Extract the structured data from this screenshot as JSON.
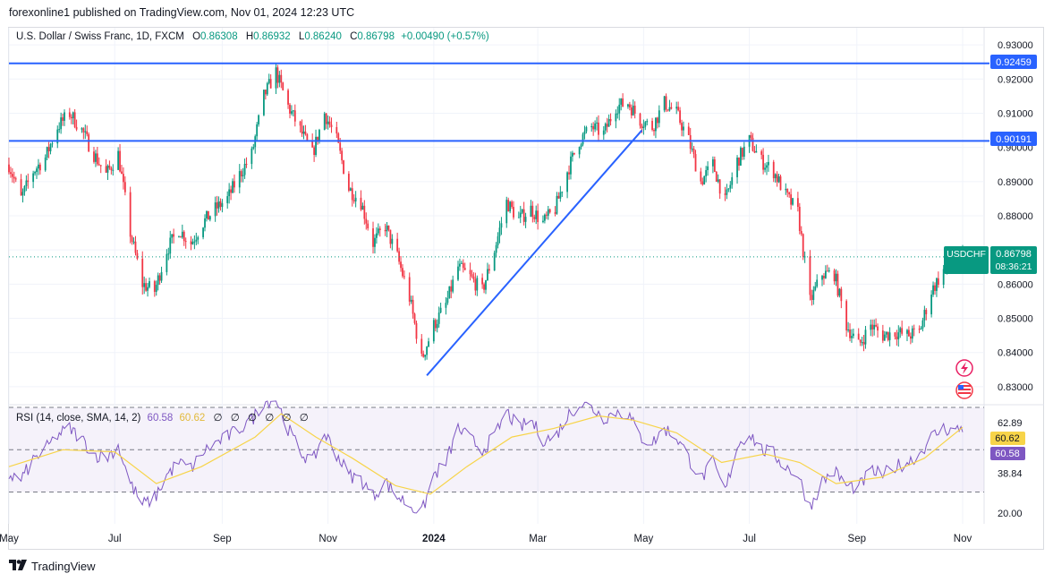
{
  "header": {
    "published": "forexonline1 published on TradingView.com, Nov 01, 2024 12:23 UTC"
  },
  "legend": {
    "symbol": "U.S. Dollar / Swiss Franc, 1D, FXCM",
    "open_label": "O",
    "open": "0.86308",
    "high_label": "H",
    "high": "0.86932",
    "low_label": "L",
    "low": "0.86240",
    "close_label": "C",
    "close": "0.86798",
    "change": "+0.00490 (+0.57%)"
  },
  "rsi_legend": {
    "name": "RSI (14, close, SMA, 14, 2)",
    "rsi_value": "60.58",
    "sma_value": "60.62",
    "na_values": [
      "∅",
      "∅",
      "∅",
      "∅",
      "∅",
      "∅"
    ]
  },
  "price_badges": {
    "symbol": "USDCHF",
    "last": "0.86798",
    "countdown": "08:36:21",
    "line_upper": "0.92459",
    "line_lower": "0.90191"
  },
  "rsi_badges": {
    "sma": "60.62",
    "rsi": "60.58"
  },
  "colors": {
    "up": "#089981",
    "down": "#f23645",
    "trendline": "#2962ff",
    "rsi_line": "#7e57c2",
    "rsi_sma": "#f7d449",
    "rsi_band": "#7e57c2"
  },
  "footer": {
    "brand": "TradingView"
  },
  "chart_data": [
    {
      "type": "candlestick",
      "title": "U.S. Dollar / Swiss Franc, 1D, FXCM",
      "ylim": [
        0.825,
        0.935
      ],
      "y_ticks": [
        "0.93000",
        "0.92000",
        "0.91000",
        "0.90000",
        "0.89000",
        "0.88000",
        "0.87000",
        "0.86000",
        "0.85000",
        "0.84000",
        "0.83000"
      ],
      "x_ticks": [
        "May",
        "Jul",
        "Sep",
        "Nov",
        "2024",
        "Mar",
        "May",
        "Jul",
        "Sep",
        "Nov"
      ],
      "horizontal_lines": [
        0.92459,
        0.90191
      ],
      "trendline": [
        {
          "x": "2023-12-28",
          "y": 0.8333
        },
        {
          "x": "2024-04-30",
          "y": 0.905
        }
      ],
      "last_price": 0.86798,
      "path": [
        [
          "2023-05-01",
          0.895
        ],
        [
          "2023-05-08",
          0.885
        ],
        [
          "2023-05-15",
          0.893
        ],
        [
          "2023-05-22",
          0.897
        ],
        [
          "2023-05-29",
          0.906
        ],
        [
          "2023-06-05",
          0.91
        ],
        [
          "2023-06-12",
          0.905
        ],
        [
          "2023-06-19",
          0.898
        ],
        [
          "2023-06-26",
          0.892
        ],
        [
          "2023-07-03",
          0.898
        ],
        [
          "2023-07-10",
          0.875
        ],
        [
          "2023-07-17",
          0.86
        ],
        [
          "2023-07-24",
          0.858
        ],
        [
          "2023-07-31",
          0.87
        ],
        [
          "2023-08-07",
          0.876
        ],
        [
          "2023-08-14",
          0.872
        ],
        [
          "2023-08-21",
          0.878
        ],
        [
          "2023-08-28",
          0.882
        ],
        [
          "2023-09-04",
          0.885
        ],
        [
          "2023-09-11",
          0.892
        ],
        [
          "2023-09-18",
          0.898
        ],
        [
          "2023-09-25",
          0.915
        ],
        [
          "2023-10-02",
          0.922
        ],
        [
          "2023-10-09",
          0.912
        ],
        [
          "2023-10-16",
          0.905
        ],
        [
          "2023-10-23",
          0.898
        ],
        [
          "2023-10-30",
          0.91
        ],
        [
          "2023-11-06",
          0.902
        ],
        [
          "2023-11-13",
          0.888
        ],
        [
          "2023-11-20",
          0.884
        ],
        [
          "2023-11-27",
          0.872
        ],
        [
          "2023-12-04",
          0.877
        ],
        [
          "2023-12-11",
          0.868
        ],
        [
          "2023-12-18",
          0.856
        ],
        [
          "2023-12-25",
          0.838
        ],
        [
          "2024-01-01",
          0.848
        ],
        [
          "2024-01-08",
          0.854
        ],
        [
          "2024-01-15",
          0.865
        ],
        [
          "2024-01-22",
          0.862
        ],
        [
          "2024-01-29",
          0.858
        ],
        [
          "2024-02-05",
          0.87
        ],
        [
          "2024-02-12",
          0.884
        ],
        [
          "2024-02-19",
          0.879
        ],
        [
          "2024-02-26",
          0.882
        ],
        [
          "2024-03-04",
          0.878
        ],
        [
          "2024-03-11",
          0.882
        ],
        [
          "2024-03-18",
          0.893
        ],
        [
          "2024-03-25",
          0.902
        ],
        [
          "2024-04-01",
          0.906
        ],
        [
          "2024-04-08",
          0.904
        ],
        [
          "2024-04-15",
          0.912
        ],
        [
          "2024-04-22",
          0.913
        ],
        [
          "2024-04-29",
          0.908
        ],
        [
          "2024-05-06",
          0.906
        ],
        [
          "2024-05-13",
          0.913
        ],
        [
          "2024-05-20",
          0.91
        ],
        [
          "2024-05-27",
          0.902
        ],
        [
          "2024-06-03",
          0.89
        ],
        [
          "2024-06-10",
          0.895
        ],
        [
          "2024-06-17",
          0.884
        ],
        [
          "2024-06-24",
          0.896
        ],
        [
          "2024-07-01",
          0.902
        ],
        [
          "2024-07-08",
          0.896
        ],
        [
          "2024-07-15",
          0.893
        ],
        [
          "2024-07-22",
          0.886
        ],
        [
          "2024-07-29",
          0.881
        ],
        [
          "2024-08-05",
          0.855
        ],
        [
          "2024-08-12",
          0.863
        ],
        [
          "2024-08-19",
          0.863
        ],
        [
          "2024-08-26",
          0.848
        ],
        [
          "2024-09-02",
          0.842
        ],
        [
          "2024-09-09",
          0.848
        ],
        [
          "2024-09-16",
          0.845
        ],
        [
          "2024-09-23",
          0.846
        ],
        [
          "2024-09-30",
          0.845
        ],
        [
          "2024-10-07",
          0.846
        ],
        [
          "2024-10-14",
          0.858
        ],
        [
          "2024-10-21",
          0.864
        ],
        [
          "2024-10-28",
          0.865
        ],
        [
          "2024-11-01",
          0.868
        ]
      ]
    },
    {
      "type": "line",
      "title": "RSI (14, close, SMA, 14, 2)",
      "ylim": [
        15,
        70
      ],
      "y_ticks": [
        "62.89",
        "38.84",
        "20.00"
      ],
      "bands": [
        70,
        30
      ],
      "middle": 50,
      "rsi_last": 60.58,
      "sma_last": 60.62,
      "rsi_path": [
        [
          "2023-05-01",
          38
        ],
        [
          "2023-05-08",
          36
        ],
        [
          "2023-05-15",
          45
        ],
        [
          "2023-05-22",
          50
        ],
        [
          "2023-05-29",
          57
        ],
        [
          "2023-06-05",
          60
        ],
        [
          "2023-06-12",
          55
        ],
        [
          "2023-06-19",
          48
        ],
        [
          "2023-06-26",
          46
        ],
        [
          "2023-07-03",
          52
        ],
        [
          "2023-07-10",
          34
        ],
        [
          "2023-07-17",
          24
        ],
        [
          "2023-07-24",
          27
        ],
        [
          "2023-07-31",
          38
        ],
        [
          "2023-08-07",
          44
        ],
        [
          "2023-08-14",
          41
        ],
        [
          "2023-08-21",
          49
        ],
        [
          "2023-08-28",
          53
        ],
        [
          "2023-09-04",
          56
        ],
        [
          "2023-09-11",
          60
        ],
        [
          "2023-09-18",
          64
        ],
        [
          "2023-09-25",
          73
        ],
        [
          "2023-10-02",
          74
        ],
        [
          "2023-10-09",
          60
        ],
        [
          "2023-10-16",
          49
        ],
        [
          "2023-10-23",
          44
        ],
        [
          "2023-10-30",
          58
        ],
        [
          "2023-11-06",
          48
        ],
        [
          "2023-11-13",
          38
        ],
        [
          "2023-11-20",
          36
        ],
        [
          "2023-11-27",
          28
        ],
        [
          "2023-12-04",
          35
        ],
        [
          "2023-12-11",
          28
        ],
        [
          "2023-12-18",
          24
        ],
        [
          "2023-12-25",
          20
        ],
        [
          "2024-01-01",
          38
        ],
        [
          "2024-01-08",
          44
        ],
        [
          "2024-01-15",
          60
        ],
        [
          "2024-01-22",
          55
        ],
        [
          "2024-01-29",
          50
        ],
        [
          "2024-02-05",
          56
        ],
        [
          "2024-02-12",
          68
        ],
        [
          "2024-02-19",
          60
        ],
        [
          "2024-02-26",
          64
        ],
        [
          "2024-03-04",
          55
        ],
        [
          "2024-03-11",
          56
        ],
        [
          "2024-03-18",
          66
        ],
        [
          "2024-03-25",
          72
        ],
        [
          "2024-04-01",
          70
        ],
        [
          "2024-04-08",
          65
        ],
        [
          "2024-04-15",
          68
        ],
        [
          "2024-04-22",
          67
        ],
        [
          "2024-04-29",
          56
        ],
        [
          "2024-05-06",
          53
        ],
        [
          "2024-05-13",
          60
        ],
        [
          "2024-05-20",
          56
        ],
        [
          "2024-05-27",
          46
        ],
        [
          "2024-06-03",
          36
        ],
        [
          "2024-06-10",
          44
        ],
        [
          "2024-06-17",
          30
        ],
        [
          "2024-06-24",
          52
        ],
        [
          "2024-07-01",
          58
        ],
        [
          "2024-07-08",
          50
        ],
        [
          "2024-07-15",
          48
        ],
        [
          "2024-07-22",
          42
        ],
        [
          "2024-07-29",
          38
        ],
        [
          "2024-08-05",
          23
        ],
        [
          "2024-08-12",
          35
        ],
        [
          "2024-08-19",
          40
        ],
        [
          "2024-08-26",
          33
        ],
        [
          "2024-09-02",
          32
        ],
        [
          "2024-09-09",
          40
        ],
        [
          "2024-09-16",
          38
        ],
        [
          "2024-09-23",
          42
        ],
        [
          "2024-09-30",
          44
        ],
        [
          "2024-10-07",
          48
        ],
        [
          "2024-10-14",
          56
        ],
        [
          "2024-10-21",
          60
        ],
        [
          "2024-10-28",
          59
        ],
        [
          "2024-11-01",
          60.58
        ]
      ],
      "sma_path": [
        [
          "2023-05-01",
          42
        ],
        [
          "2023-06-01",
          50
        ],
        [
          "2023-07-01",
          49
        ],
        [
          "2023-07-25",
          34
        ],
        [
          "2023-08-20",
          42
        ],
        [
          "2023-09-20",
          56
        ],
        [
          "2023-10-05",
          67
        ],
        [
          "2023-10-25",
          56
        ],
        [
          "2023-11-15",
          46
        ],
        [
          "2023-12-10",
          33
        ],
        [
          "2023-12-30",
          29
        ],
        [
          "2024-01-20",
          42
        ],
        [
          "2024-02-15",
          56
        ],
        [
          "2024-03-10",
          60
        ],
        [
          "2024-04-05",
          66
        ],
        [
          "2024-04-25",
          64
        ],
        [
          "2024-05-20",
          58
        ],
        [
          "2024-06-15",
          44
        ],
        [
          "2024-07-10",
          48
        ],
        [
          "2024-07-30",
          44
        ],
        [
          "2024-08-20",
          34
        ],
        [
          "2024-09-15",
          37
        ],
        [
          "2024-10-10",
          46
        ],
        [
          "2024-11-01",
          60.62
        ]
      ]
    }
  ]
}
